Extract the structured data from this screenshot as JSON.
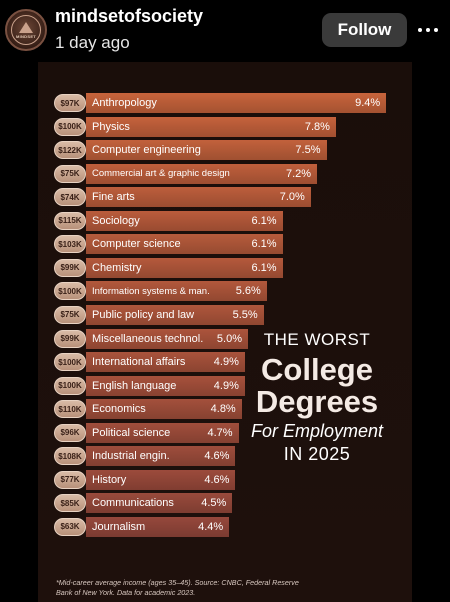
{
  "post": {
    "username": "mindsetofsociety",
    "timestamp": "1 day ago",
    "follow_label": "Follow",
    "avatar_text": "MINDSET"
  },
  "infographic": {
    "headline_line1": "THE WORST",
    "headline_line2": "College",
    "headline_line3": "Degrees",
    "headline_line4": "For Employment",
    "headline_line5": "IN 2025",
    "footnote": "*Mid-career average income (ages 35–45). Source: CNBC, Federal Reserve Bank of New York. Data for academic 2023."
  },
  "chart_data": {
    "type": "bar",
    "orientation": "horizontal",
    "title": "THE WORST College Degrees For Employment IN 2025",
    "categories": [
      "Anthropology",
      "Physics",
      "Computer engineering",
      "Commercial art & graphic design",
      "Fine arts",
      "Sociology",
      "Computer science",
      "Chemistry",
      "Information systems & man.",
      "Public policy and law",
      "Miscellaneous technol.",
      "International affairs",
      "English language",
      "Economics",
      "Political science",
      "Industrial engin.",
      "History",
      "Communications",
      "Journalism"
    ],
    "value_labels": [
      "9.4%",
      "7.8%",
      "7.5%",
      "7.2%",
      "7.0%",
      "6.1%",
      "6.1%",
      "6.1%",
      "5.6%",
      "5.5%",
      "5.0%",
      "4.9%",
      "4.9%",
      "4.8%",
      "4.7%",
      "4.6%",
      "4.6%",
      "4.5%",
      "4.4%"
    ],
    "values": [
      9.4,
      7.8,
      7.5,
      7.2,
      7.0,
      6.1,
      6.1,
      6.1,
      5.6,
      5.5,
      5.0,
      4.9,
      4.9,
      4.8,
      4.7,
      4.6,
      4.6,
      4.5,
      4.4
    ],
    "salaries": [
      "$97K",
      "$100K",
      "$122K",
      "$75K",
      "$74K",
      "$115K",
      "$103K",
      "$99K",
      "$100K",
      "$75K",
      "$99K",
      "$100K",
      "$100K",
      "$110K",
      "$96K",
      "$108K",
      "$77K",
      "$85K",
      "$63K"
    ],
    "colors": {
      "bar_top": "#c8643c",
      "bar_bottom": "#8a4a3c"
    }
  }
}
